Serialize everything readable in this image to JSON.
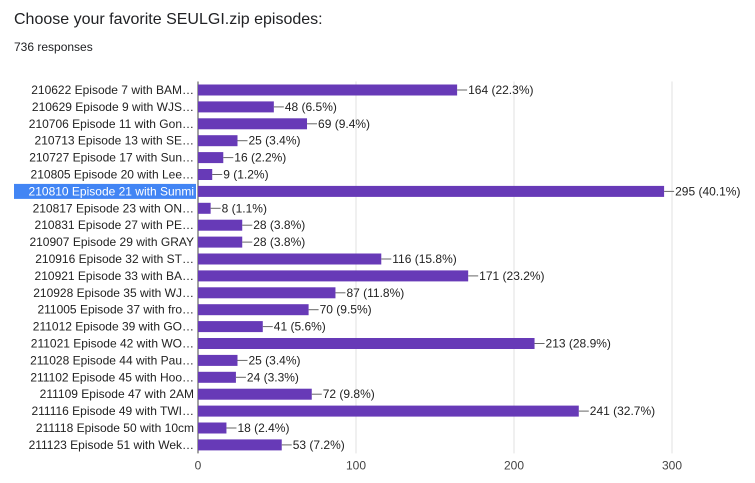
{
  "header": {
    "question": "Choose your favorite SEULGI.zip episodes:",
    "responses": "736 responses"
  },
  "colors": {
    "bar": "#673ab7",
    "highlight": "#4285f4",
    "grid": "#e0e0e0",
    "axis": "#444444"
  },
  "chart_data": {
    "type": "bar",
    "orientation": "horizontal",
    "title": "",
    "xlabel": "",
    "ylabel": "",
    "xlim": [
      0,
      300
    ],
    "ticks": [
      0,
      100,
      200,
      300
    ],
    "grid": true,
    "highlighted_category": "210810 Episode 21 with Sunmi",
    "categories": [
      "210622 Episode 7 with BAM…",
      "210629 Episode 9 with WJS…",
      "210706 Episode 11 with Gon…",
      "210713 Episode 13 with SE…",
      "210727 Episode 17 with Sun…",
      "210805 Episode 20 with Lee…",
      "210810 Episode 21 with Sunmi",
      "210817 Episode 23 with ON…",
      "210831 Episode 27 with PE…",
      "210907 Episode 29 with GRAY",
      "210916 Episode 32 with ST…",
      "210921 Episode 33 with BA…",
      "210928 Episode 35 with WJ…",
      "211005 Episode 37 with fro…",
      "211012 Episode 39 with GO…",
      "211021 Episode 42 with WO…",
      "211028 Episode 44 with Pau…",
      "211102 Episode 45 with Hoo…",
      "211109 Episode 47 with 2AM",
      "211116 Episode 49 with TWI…",
      "211118 Episode 50 with 10cm",
      "211123 Episode 51 with Wek…"
    ],
    "values": [
      164,
      48,
      69,
      25,
      16,
      9,
      295,
      8,
      28,
      28,
      116,
      171,
      87,
      70,
      41,
      213,
      25,
      24,
      72,
      241,
      18,
      53
    ],
    "data_labels": [
      "164 (22.3%)",
      "48 (6.5%)",
      "69 (9.4%)",
      "25 (3.4%)",
      "16 (2.2%)",
      "9 (1.2%)",
      "295 (40.1%)",
      "8 (1.1%)",
      "28 (3.8%)",
      "28 (3.8%)",
      "116 (15.8%)",
      "171 (23.2%)",
      "87 (11.8%)",
      "70 (9.5%)",
      "41 (5.6%)",
      "213 (28.9%)",
      "25 (3.4%)",
      "24 (3.3%)",
      "72 (9.8%)",
      "241 (32.7%)",
      "18 (2.4%)",
      "53 (7.2%)"
    ]
  }
}
